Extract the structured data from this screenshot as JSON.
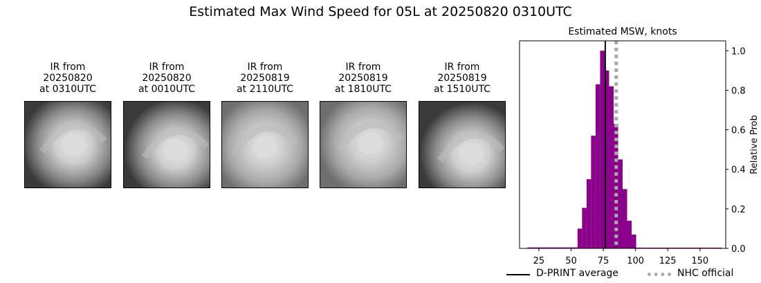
{
  "title": "Estimated Max Wind Speed for 05L at 20250820 0310UTC",
  "ir_panels": [
    {
      "line1": "IR from",
      "line2": "20250820",
      "line3": "at 0310UTC",
      "tone": "dark"
    },
    {
      "line1": "IR from",
      "line2": "20250820",
      "line3": "at 0010UTC",
      "tone": "dark"
    },
    {
      "line1": "IR from",
      "line2": "20250819",
      "line3": "at 2110UTC",
      "tone": "mid"
    },
    {
      "line1": "IR from",
      "line2": "20250819",
      "line3": "at 1810UTC",
      "tone": "mid"
    },
    {
      "line1": "IR from",
      "line2": "20250819",
      "line3": "at 1510UTC",
      "tone": "dark"
    }
  ],
  "chart_data": {
    "type": "bar",
    "title": "Estimated MSW, knots",
    "xlabel": "",
    "ylabel": "Relative Prob",
    "xlim": [
      10,
      170
    ],
    "ylim": [
      0,
      1.05
    ],
    "xticks": [
      25,
      50,
      75,
      100,
      125,
      150
    ],
    "yticks": [
      0.0,
      0.2,
      0.4,
      0.6,
      0.8,
      1.0
    ],
    "ytick_labels": [
      "0.0",
      "0.2",
      "0.4",
      "0.6",
      "0.8",
      "1.0"
    ],
    "y_axis_side": "right",
    "bar_color": "#8b008b",
    "bin_width": 3.5,
    "bins": [
      {
        "x0": 16,
        "x1": 55,
        "value": 0.005
      },
      {
        "x0": 55,
        "x1": 58.5,
        "value": 0.1
      },
      {
        "x0": 58.5,
        "x1": 62,
        "value": 0.205
      },
      {
        "x0": 62,
        "x1": 65.5,
        "value": 0.35
      },
      {
        "x0": 65.5,
        "x1": 69,
        "value": 0.57
      },
      {
        "x0": 69,
        "x1": 72.5,
        "value": 0.83
      },
      {
        "x0": 72.5,
        "x1": 76,
        "value": 1.0
      },
      {
        "x0": 76,
        "x1": 79.5,
        "value": 0.9
      },
      {
        "x0": 79.5,
        "x1": 83,
        "value": 0.82
      },
      {
        "x0": 83,
        "x1": 86.5,
        "value": 0.63
      },
      {
        "x0": 86.5,
        "x1": 90,
        "value": 0.45
      },
      {
        "x0": 90,
        "x1": 93.5,
        "value": 0.3
      },
      {
        "x0": 93.5,
        "x1": 97,
        "value": 0.14
      },
      {
        "x0": 97,
        "x1": 100.5,
        "value": 0.07
      },
      {
        "x0": 100.5,
        "x1": 167,
        "value": 0.004
      }
    ],
    "dprint_average": 76.5,
    "nhc_official": 85,
    "legend": {
      "placement": "bottom",
      "dprint_label": "D-PRINT average",
      "nhc_label": "NHC official",
      "dprint_color": "#000000",
      "nhc_color": "#a9a9a9"
    }
  }
}
